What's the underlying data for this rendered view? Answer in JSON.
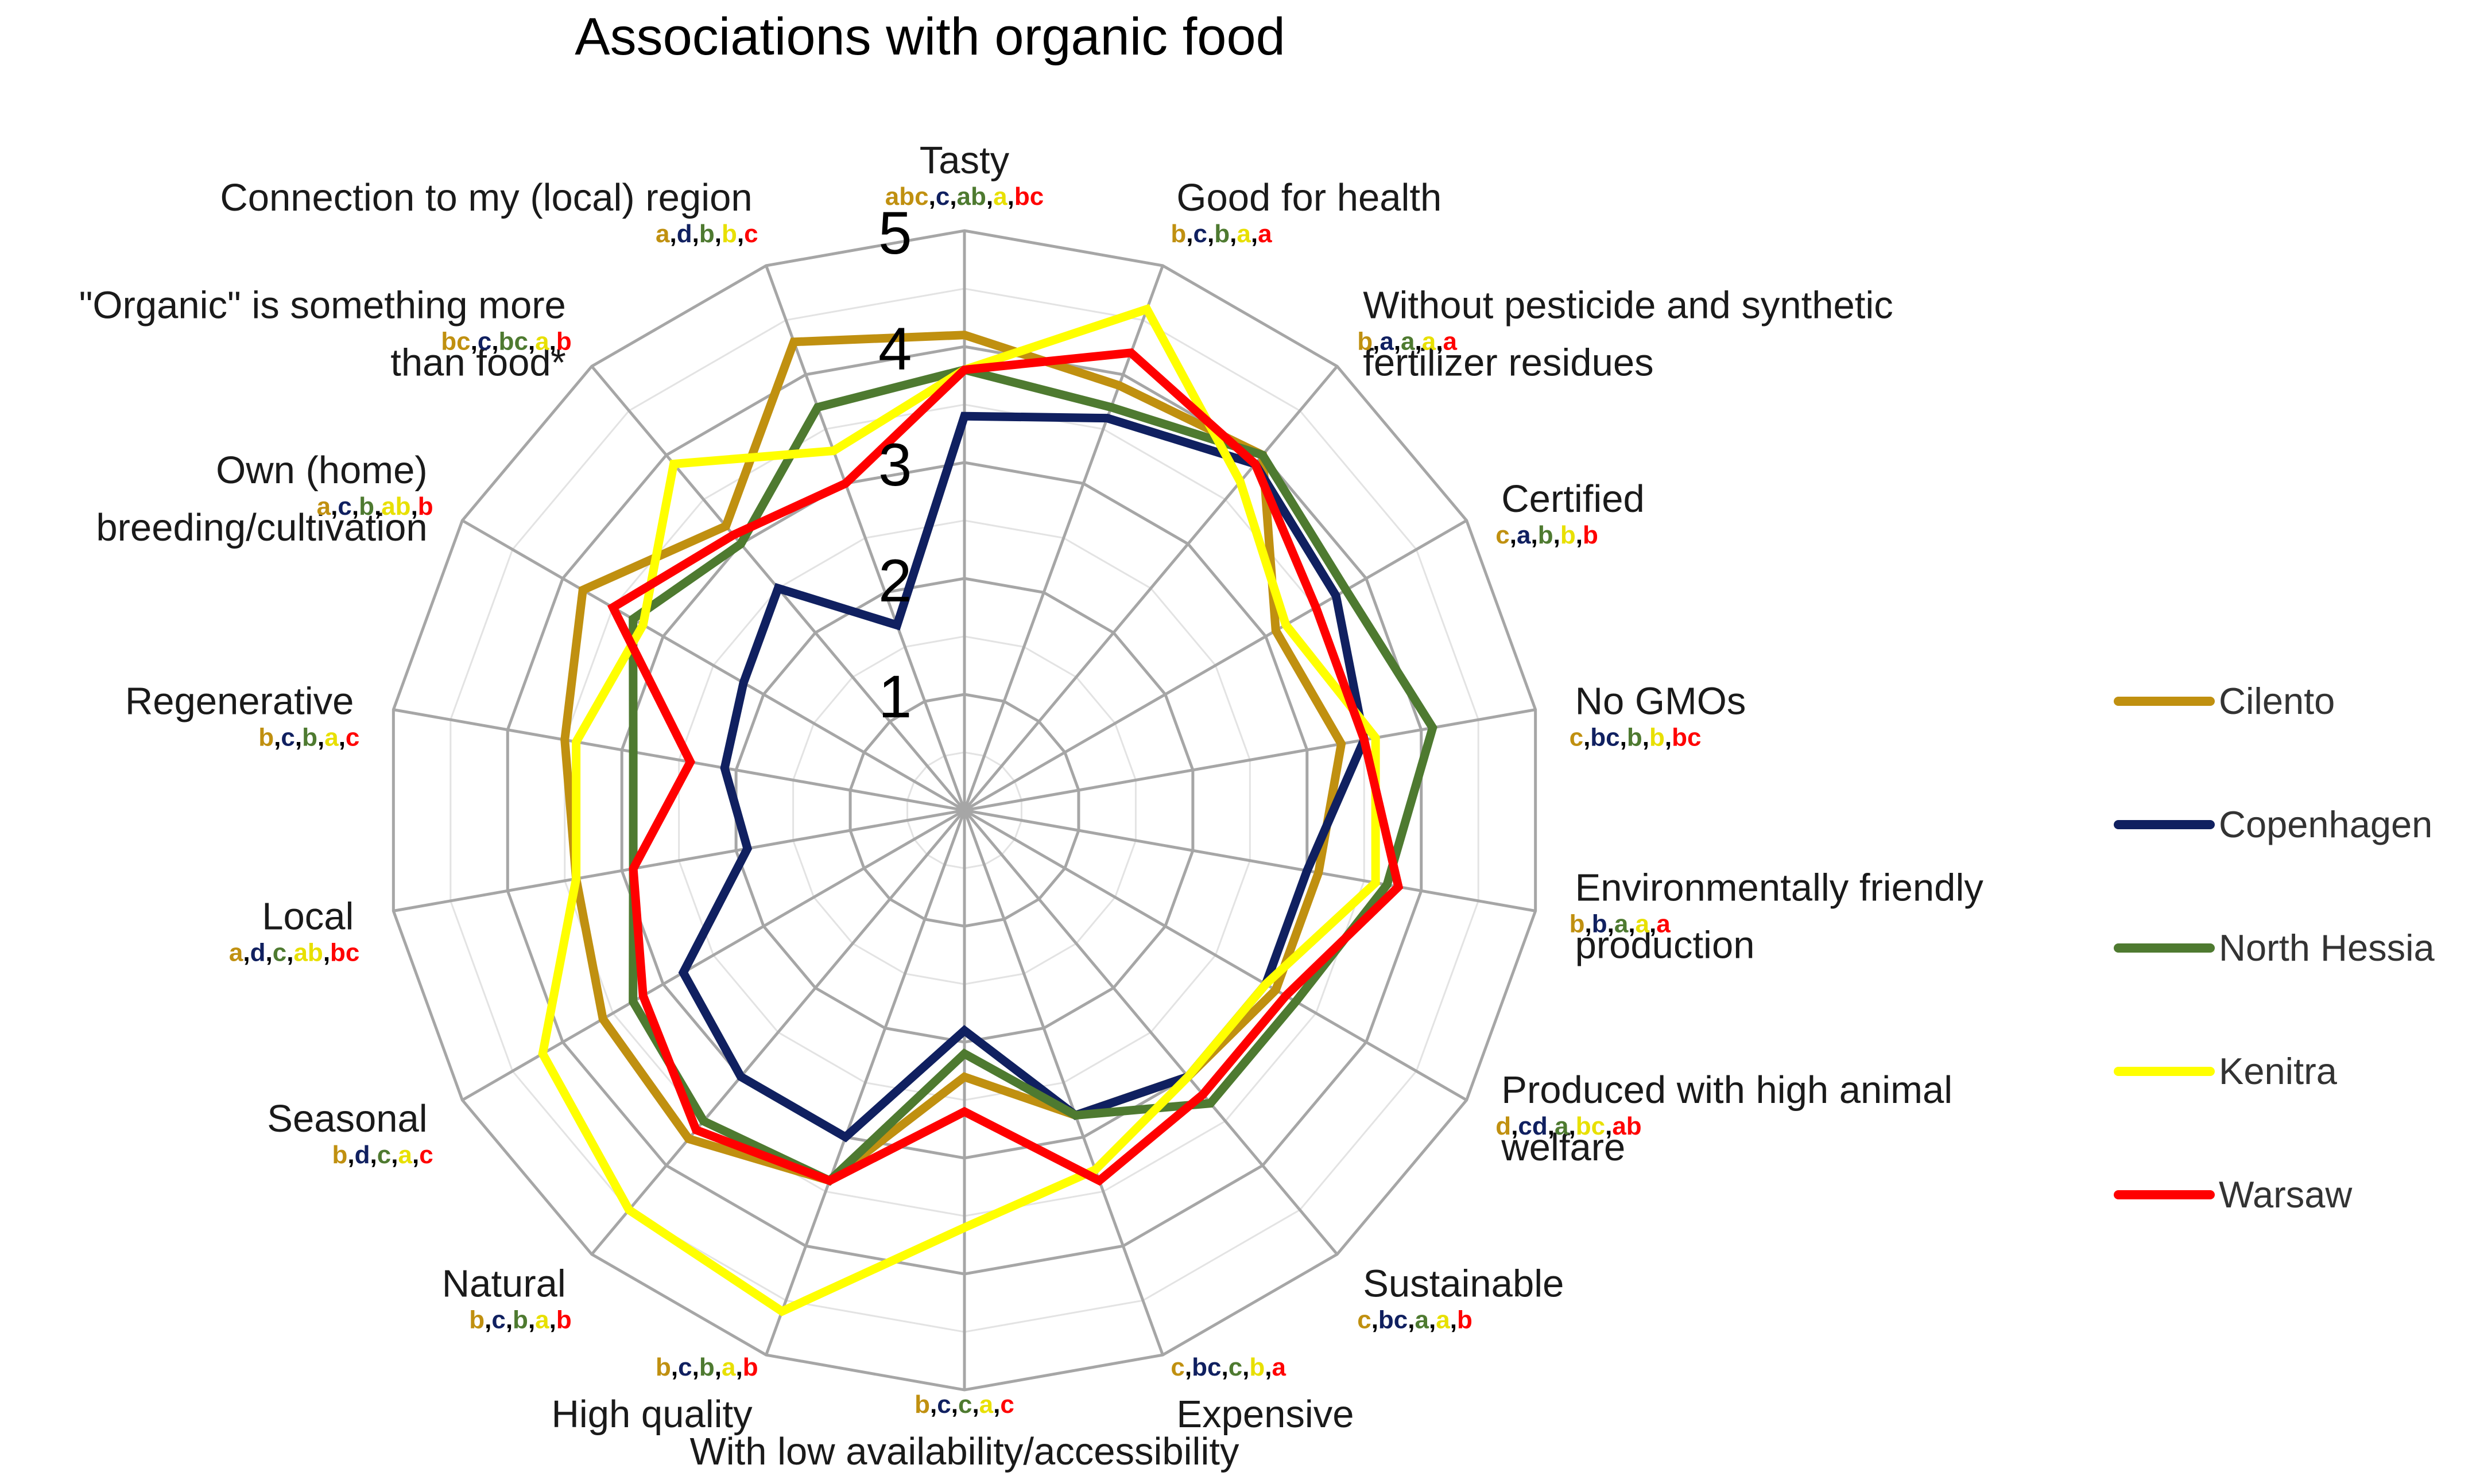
{
  "chart_data": {
    "type": "radar",
    "title": "Associations with organic food",
    "rlim": [
      0,
      5
    ],
    "ticks": [
      "1",
      "2",
      "3",
      "4",
      "5"
    ],
    "categories": [
      {
        "lines": [
          "Tasty"
        ],
        "letters": [
          "abc",
          "c",
          "ab",
          "a",
          "bc"
        ]
      },
      {
        "lines": [
          "Good for health"
        ],
        "letters": [
          "b",
          "c",
          "b",
          "a",
          "a"
        ]
      },
      {
        "lines": [
          "Without pesticide and synthetic",
          "fertilizer residues"
        ],
        "letters": [
          "b",
          "a",
          "a",
          "a",
          "a"
        ]
      },
      {
        "lines": [
          "Certified"
        ],
        "letters": [
          "c",
          "a",
          "b",
          "b",
          "b"
        ]
      },
      {
        "lines": [
          "No GMOs"
        ],
        "letters": [
          "c",
          "bc",
          "b",
          "b",
          "bc"
        ]
      },
      {
        "lines": [
          "Environmentally friendly",
          "production"
        ],
        "letters": [
          "b",
          "b",
          "a",
          "a",
          "a"
        ]
      },
      {
        "lines": [
          "Produced with high animal",
          "welfare"
        ],
        "letters": [
          "d",
          "cd",
          "a",
          "bc",
          "ab"
        ]
      },
      {
        "lines": [
          "Sustainable"
        ],
        "letters": [
          "c",
          "bc",
          "a",
          "a",
          "b"
        ]
      },
      {
        "lines": [
          "Expensive"
        ],
        "letters": [
          "c",
          "bc",
          "c",
          "b",
          "a"
        ]
      },
      {
        "lines": [
          "With low availability/accessibility"
        ],
        "letters": [
          "b",
          "c",
          "c",
          "a",
          "c"
        ]
      },
      {
        "lines": [
          "High quality"
        ],
        "letters": [
          "b",
          "c",
          "b",
          "a",
          "b"
        ]
      },
      {
        "lines": [
          "Natural"
        ],
        "letters": [
          "b",
          "c",
          "b",
          "a",
          "b"
        ]
      },
      {
        "lines": [
          "Seasonal"
        ],
        "letters": [
          "b",
          "d",
          "c",
          "a",
          "c"
        ]
      },
      {
        "lines": [
          "Local"
        ],
        "letters": [
          "a",
          "d",
          "c",
          "ab",
          "bc"
        ]
      },
      {
        "lines": [
          "Regenerative"
        ],
        "letters": [
          "b",
          "c",
          "b",
          "a",
          "c"
        ]
      },
      {
        "lines": [
          "Own (home)",
          "breeding/cultivation"
        ],
        "letters": [
          "a",
          "c",
          "b",
          "ab",
          "b"
        ]
      },
      {
        "lines": [
          "\"Organic\" is something more",
          "than food*"
        ],
        "letters": [
          "bc",
          "c",
          "bc",
          "a",
          "b"
        ]
      },
      {
        "lines": [
          "Connection to my (local) region"
        ],
        "letters": [
          "a",
          "d",
          "b",
          "b",
          "c"
        ]
      }
    ],
    "series": [
      {
        "name": "Cilento",
        "color": "#C09010",
        "values": [
          4.1,
          3.9,
          4.0,
          3.1,
          3.3,
          3.1,
          3.1,
          3.0,
          2.8,
          2.3,
          3.4,
          3.7,
          3.6,
          3.4,
          3.5,
          3.8,
          3.2,
          4.3
        ]
      },
      {
        "name": "Copenhagen",
        "color": "#102060",
        "values": [
          3.4,
          3.6,
          3.9,
          3.7,
          3.5,
          3.0,
          3.0,
          3.0,
          2.8,
          1.9,
          3.0,
          3.0,
          2.8,
          1.9,
          2.1,
          2.2,
          2.5,
          1.7
        ]
      },
      {
        "name": "North Hessia",
        "color": "#4E7A30",
        "values": [
          3.8,
          3.7,
          4.0,
          3.8,
          4.1,
          3.7,
          3.3,
          3.3,
          2.8,
          2.1,
          3.4,
          3.5,
          3.3,
          2.9,
          2.9,
          3.3,
          3.0,
          3.7
        ]
      },
      {
        "name": "Kenitra",
        "color": "#FFFF00",
        "values": [
          3.8,
          4.6,
          3.7,
          3.2,
          3.6,
          3.6,
          3.0,
          3.0,
          3.3,
          3.6,
          4.6,
          4.5,
          4.2,
          3.4,
          3.4,
          3.2,
          3.9,
          3.3
        ]
      },
      {
        "name": "Warsaw",
        "color": "#FF0000",
        "values": [
          3.8,
          4.2,
          3.9,
          3.5,
          3.5,
          3.8,
          3.2,
          3.2,
          3.4,
          2.6,
          3.4,
          3.6,
          3.2,
          2.9,
          2.4,
          3.5,
          3.1,
          3.0
        ]
      }
    ],
    "legend_position": "right",
    "grid": true
  }
}
